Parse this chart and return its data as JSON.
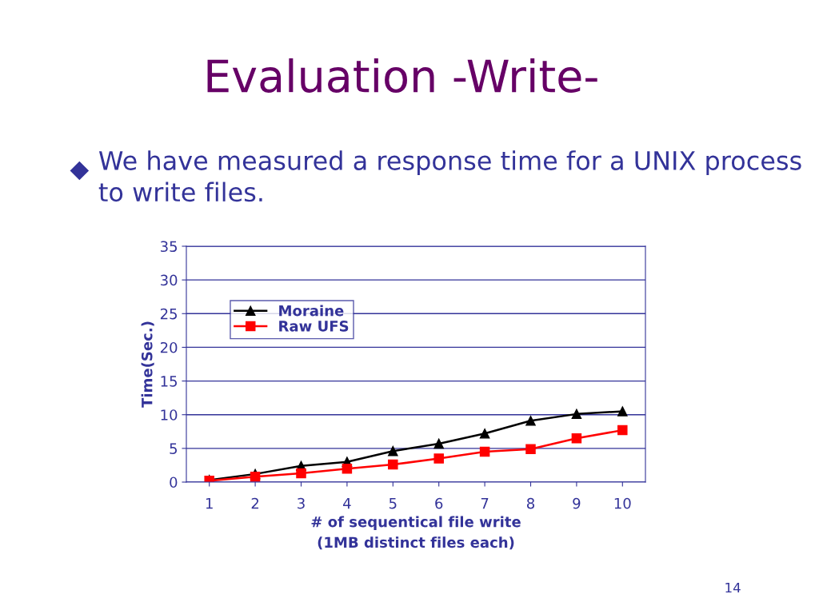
{
  "chart_data": {
    "type": "line",
    "title": "Evaluation -Write-",
    "subtitle": "We have measured a response time for a UNIX process to write files.",
    "xlabel": "# of sequentical file write\n(1MB distinct files each)",
    "ylabel": "Time(Sec.)",
    "categories": [
      "1",
      "2",
      "3",
      "4",
      "5",
      "6",
      "7",
      "8",
      "9",
      "10"
    ],
    "series": [
      {
        "name": "Moraine",
        "color": "#000000",
        "marker": "triangle",
        "values": [
          0.3,
          1.2,
          2.4,
          3.0,
          4.6,
          5.7,
          7.2,
          9.1,
          10.1,
          10.5
        ]
      },
      {
        "name": "Raw UFS",
        "color": "#ff0000",
        "marker": "square",
        "values": [
          0.2,
          0.8,
          1.3,
          2.0,
          2.6,
          3.5,
          4.5,
          4.9,
          6.5,
          7.7
        ]
      }
    ],
    "ylim": [
      0,
      35
    ],
    "yticks": [
      0,
      5,
      10,
      15,
      20,
      25,
      30,
      35
    ],
    "grid": "y",
    "legend": "top left",
    "line_style": "solid",
    "annotations": [
      "14"
    ]
  }
}
